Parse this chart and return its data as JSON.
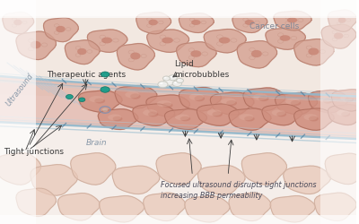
{
  "labels": {
    "ultrasound": "Ultrasound",
    "therapeutic_agents": "Therapeutic agents",
    "lipid_microbubbles": "Lipid\nmicrobubbles",
    "cancer_cells": "Cancer cells",
    "tight_junctions": "Tight junctions",
    "brain": "Brain",
    "focused_ultrasound": "Focused ultrasound disrupts tight junctions\nincreasing BBB permeability"
  },
  "cancer_cells": [
    [
      0.3,
      0.82,
      0.055,
      0.05,
      -10
    ],
    [
      0.38,
      0.75,
      0.052,
      0.058,
      5
    ],
    [
      0.47,
      0.82,
      0.058,
      0.05,
      15
    ],
    [
      0.55,
      0.76,
      0.055,
      0.055,
      -5
    ],
    [
      0.63,
      0.82,
      0.058,
      0.052,
      10
    ],
    [
      0.72,
      0.76,
      0.055,
      0.06,
      -8
    ],
    [
      0.8,
      0.83,
      0.055,
      0.048,
      5
    ],
    [
      0.88,
      0.77,
      0.055,
      0.058,
      -15
    ],
    [
      0.95,
      0.84,
      0.048,
      0.053,
      10
    ],
    [
      0.7,
      0.9,
      0.048,
      0.043,
      0
    ],
    [
      0.82,
      0.91,
      0.052,
      0.043,
      -5
    ],
    [
      0.55,
      0.9,
      0.048,
      0.043,
      8
    ],
    [
      0.43,
      0.9,
      0.048,
      0.048,
      -3
    ],
    [
      0.96,
      0.91,
      0.04,
      0.048,
      5
    ],
    [
      0.1,
      0.8,
      0.055,
      0.062,
      5
    ],
    [
      0.17,
      0.87,
      0.048,
      0.053,
      -8
    ],
    [
      0.05,
      0.9,
      0.043,
      0.048,
      10
    ],
    [
      0.23,
      0.77,
      0.048,
      0.053,
      3
    ]
  ],
  "vessel_cells": [
    [
      0.28,
      0.55,
      0.06,
      0.048,
      0
    ],
    [
      0.38,
      0.57,
      0.058,
      0.05,
      8
    ],
    [
      0.47,
      0.53,
      0.06,
      0.048,
      -5
    ],
    [
      0.56,
      0.56,
      0.058,
      0.052,
      5
    ],
    [
      0.65,
      0.54,
      0.06,
      0.05,
      -8
    ],
    [
      0.74,
      0.56,
      0.058,
      0.05,
      10
    ],
    [
      0.83,
      0.54,
      0.058,
      0.048,
      -5
    ],
    [
      0.92,
      0.55,
      0.055,
      0.05,
      3
    ],
    [
      0.33,
      0.47,
      0.055,
      0.045,
      5
    ],
    [
      0.43,
      0.49,
      0.058,
      0.048,
      -8
    ],
    [
      0.52,
      0.47,
      0.058,
      0.045,
      3
    ],
    [
      0.61,
      0.49,
      0.058,
      0.048,
      -5
    ],
    [
      0.7,
      0.47,
      0.058,
      0.048,
      8
    ],
    [
      0.79,
      0.49,
      0.055,
      0.046,
      -3
    ],
    [
      0.88,
      0.47,
      0.055,
      0.048,
      5
    ],
    [
      0.97,
      0.49,
      0.05,
      0.045,
      -8
    ],
    [
      0.98,
      0.555,
      0.05,
      0.048,
      0
    ]
  ],
  "brain_cells": [
    [
      0.05,
      0.25,
      0.062,
      0.07,
      10
    ],
    [
      0.15,
      0.2,
      0.065,
      0.068,
      -5
    ],
    [
      0.26,
      0.25,
      0.062,
      0.07,
      8
    ],
    [
      0.38,
      0.2,
      0.065,
      0.062,
      -10
    ],
    [
      0.5,
      0.25,
      0.062,
      0.07,
      5
    ],
    [
      0.62,
      0.2,
      0.065,
      0.065,
      -8
    ],
    [
      0.74,
      0.25,
      0.062,
      0.07,
      12
    ],
    [
      0.86,
      0.2,
      0.065,
      0.062,
      -5
    ],
    [
      0.97,
      0.25,
      0.058,
      0.068,
      8
    ],
    [
      0.1,
      0.1,
      0.055,
      0.062,
      0
    ],
    [
      0.22,
      0.08,
      0.058,
      0.06,
      -5
    ],
    [
      0.34,
      0.07,
      0.062,
      0.058,
      8
    ],
    [
      0.46,
      0.08,
      0.058,
      0.062,
      5
    ],
    [
      0.58,
      0.07,
      0.062,
      0.058,
      -8
    ],
    [
      0.7,
      0.08,
      0.058,
      0.062,
      10
    ],
    [
      0.82,
      0.07,
      0.062,
      0.058,
      -5
    ],
    [
      0.94,
      0.08,
      0.058,
      0.062,
      3
    ]
  ],
  "vessel_color": "#cc8878",
  "vessel_fill": "#d49080",
  "cancer_color": "#d4a090",
  "cancer_edge": "#b88070",
  "cancer_nucleus": "#c07060",
  "vessel_cell_color": "#d09080",
  "vessel_cell_edge": "#b07060",
  "vessel_cell_nucleus": "#c07868",
  "brain_color": "#e8c8b8",
  "brain_edge": "#c8a898",
  "wall_color": "#90b8cc",
  "wall2_color": "#a8ccd8",
  "teal": "#1a9d8a",
  "teal_edge": "#0d7060",
  "bubble_color": "#f0f0ee",
  "bubble_edge": "#c8c8c0",
  "arrow_color": "#3a3a3a",
  "text_color": "#383838",
  "ultrasound_color": "#8898a8",
  "brain_label_color": "#8898a8",
  "cancer_label_color": "#808898",
  "focused_color": "#484858"
}
